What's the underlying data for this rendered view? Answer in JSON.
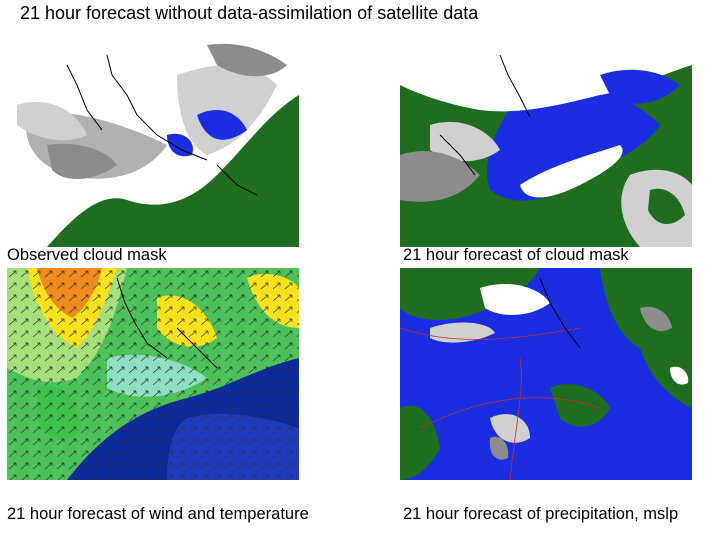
{
  "page": {
    "title": "21 hour forecast without data-assimilation of satellite data"
  },
  "panels": [
    {
      "id": "observed-cloud-mask",
      "caption": "Observed cloud mask"
    },
    {
      "id": "forecast-cloud-mask",
      "caption": "21 hour forecast of cloud mask"
    },
    {
      "id": "forecast-wind-temperature",
      "caption": "21 hour forecast of wind and temperature"
    },
    {
      "id": "forecast-precipitation-mslp",
      "caption": "21 hour forecast of precipitation, mslp"
    }
  ],
  "colors": {
    "land": "#1f6e1f",
    "sea": "#1a2de0",
    "cloud_white": "#ffffff",
    "cloud_light": "#d0d0d0",
    "cloud_dark": "#8c8c8c",
    "temp_cold": "#0b2a9c",
    "temp_mid": "#3cc24a",
    "temp_warm": "#f7e21c",
    "temp_hot": "#f08a1c"
  }
}
